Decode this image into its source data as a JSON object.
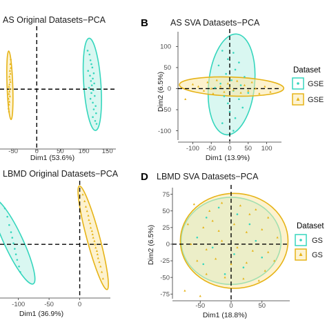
{
  "colors": {
    "teal": "#35d6bd",
    "gold": "#e6b316",
    "teal_fill": "#b9f0e5",
    "gold_fill": "#fbe7a6",
    "axis_line": "#333333",
    "refline": "#000000"
  },
  "legend": {
    "title": "Dataset",
    "title_d": "Dataset",
    "items_b": [
      "GSE",
      "GSE"
    ],
    "items_d": [
      "GS",
      "GS"
    ],
    "icons": [
      "circle-icon",
      "triangle-icon"
    ]
  },
  "chart_data": [
    {
      "id": "A",
      "type": "scatter",
      "title": "AS Original Datasets−PCA",
      "panel_label": "",
      "xlabel": "Dim1 (53.6%)",
      "ylabel": "",
      "xlim": [
        -78,
        168
      ],
      "ylim": [
        -120,
        125
      ],
      "xticks": [
        "-50",
        "0",
        "50",
        "100",
        "150"
      ],
      "yticks": [],
      "refline_x": 0,
      "refline_y": 0,
      "series": [
        {
          "color": "teal",
          "marker": "circle",
          "ellipse": {
            "cx": 118,
            "cy": 10,
            "rx": 97,
            "ry": 18,
            "angle": 94
          },
          "points": [
            [
              108,
              80
            ],
            [
              112,
              72
            ],
            [
              114,
              60
            ],
            [
              116,
              52
            ],
            [
              118,
              45
            ],
            [
              109,
              38
            ],
            [
              121,
              33
            ],
            [
              113,
              28
            ],
            [
              119,
              22
            ],
            [
              115,
              17
            ],
            [
              122,
              12
            ],
            [
              117,
              8
            ],
            [
              111,
              3
            ],
            [
              120,
              -2
            ],
            [
              116,
              -8
            ],
            [
              123,
              -14
            ],
            [
              114,
              -20
            ],
            [
              119,
              -28
            ],
            [
              125,
              -35
            ],
            [
              121,
              -42
            ],
            [
              126,
              -50
            ],
            [
              119,
              -58
            ],
            [
              124,
              -66
            ],
            [
              127,
              -72
            ]
          ]
        },
        {
          "color": "gold",
          "marker": "triangle",
          "ellipse": {
            "cx": -57,
            "cy": 8,
            "rx": 72,
            "ry": 6,
            "angle": 92
          },
          "points": [
            [
              -55,
              62
            ],
            [
              -56,
              52
            ],
            [
              -55,
              44
            ],
            [
              -57,
              38
            ],
            [
              -56,
              32
            ],
            [
              -58,
              26
            ],
            [
              -57,
              20
            ],
            [
              -56,
              15
            ],
            [
              -58,
              10
            ],
            [
              -59,
              5
            ],
            [
              -57,
              0
            ],
            [
              -58,
              -5
            ],
            [
              -59,
              -10
            ],
            [
              -57,
              -15
            ],
            [
              -60,
              -20
            ],
            [
              -58,
              -26
            ],
            [
              -59,
              -32
            ],
            [
              -60,
              -40
            ],
            [
              -59,
              -46
            ]
          ]
        }
      ]
    },
    {
      "id": "B",
      "type": "scatter",
      "title": "AS SVA Datasets−PCA",
      "panel_label": "B",
      "xlabel": "Dim1 (13.9%)",
      "ylabel": "Dim2 (6.5%)",
      "xlim": [
        -140,
        140
      ],
      "ylim": [
        -122,
        135
      ],
      "xticks": [
        "-100",
        "-50",
        "0",
        "50",
        "100"
      ],
      "yticks": [
        "100",
        "50",
        "0",
        "-50",
        "-100"
      ],
      "xtick_values": [
        -100,
        -50,
        0,
        50,
        100
      ],
      "ytick_values": [
        100,
        50,
        0,
        -50,
        -100
      ],
      "refline_x": 0,
      "refline_y": 0,
      "series": [
        {
          "color": "teal",
          "marker": "circle",
          "ellipse": {
            "cx": 5,
            "cy": 10,
            "rx": 128,
            "ry": 58,
            "angle": 84
          },
          "points": [
            [
              -20,
              90
            ],
            [
              10,
              85
            ],
            [
              -5,
              70
            ],
            [
              25,
              62
            ],
            [
              -30,
              55
            ],
            [
              15,
              45
            ],
            [
              -10,
              35
            ],
            [
              40,
              28
            ],
            [
              5,
              20
            ],
            [
              -25,
              12
            ],
            [
              30,
              8
            ],
            [
              -40,
              2
            ],
            [
              10,
              -5
            ],
            [
              50,
              -10
            ],
            [
              -15,
              -18
            ],
            [
              25,
              -25
            ],
            [
              -5,
              -35
            ],
            [
              35,
              -45
            ],
            [
              0,
              -55
            ],
            [
              15,
              -70
            ],
            [
              -20,
              -82
            ],
            [
              10,
              -100
            ]
          ]
        },
        {
          "color": "gold",
          "marker": "triangle",
          "ellipse": {
            "cx": 5,
            "cy": 5,
            "rx": 132,
            "ry": 24,
            "angle": -2
          },
          "points": [
            [
              -100,
              10
            ],
            [
              -85,
              5
            ],
            [
              -70,
              -5
            ],
            [
              -60,
              15
            ],
            [
              -50,
              0
            ],
            [
              -45,
              -12
            ],
            [
              -35,
              20
            ],
            [
              -25,
              5
            ],
            [
              -15,
              -8
            ],
            [
              -5,
              12
            ],
            [
              0,
              2
            ],
            [
              10,
              -3
            ],
            [
              20,
              18
            ],
            [
              30,
              -10
            ],
            [
              40,
              8
            ],
            [
              50,
              -5
            ],
            [
              60,
              15
            ],
            [
              70,
              0
            ],
            [
              80,
              -12
            ],
            [
              95,
              5
            ],
            [
              -120,
              -25
            ],
            [
              110,
              -8
            ]
          ]
        }
      ]
    },
    {
      "id": "C",
      "type": "scatter",
      "title": "LBMD Original Datasets−PCA",
      "panel_label": "",
      "xlabel": "Dim1 (36.9%)",
      "ylabel": "",
      "xlim": [
        -130,
        50
      ],
      "ylim": [
        -92,
        110
      ],
      "xticks": [
        "-100",
        "-50",
        "0"
      ],
      "xtick_values": [
        -100,
        -50,
        0
      ],
      "yticks": [],
      "refline_x": 0,
      "refline_y": 0,
      "series": [
        {
          "color": "teal",
          "marker": "circle",
          "ellipse": {
            "cx": -108,
            "cy": 5,
            "rx": 80,
            "ry": 16,
            "angle": 115
          },
          "points": [
            [
              -122,
              65
            ],
            [
              -118,
              50
            ],
            [
              -115,
              35
            ],
            [
              -112,
              22
            ],
            [
              -110,
              12
            ],
            [
              -108,
              2
            ],
            [
              -106,
              -8
            ],
            [
              -104,
              -18
            ],
            [
              -102,
              -28
            ],
            [
              -99,
              -40
            ],
            [
              -97,
              -50
            ]
          ]
        },
        {
          "color": "gold",
          "marker": "triangle",
          "ellipse": {
            "cx": 22,
            "cy": 12,
            "rx": 92,
            "ry": 11,
            "angle": 105
          },
          "points": [
            [
              5,
              90
            ],
            [
              8,
              78
            ],
            [
              10,
              68
            ],
            [
              12,
              60
            ],
            [
              14,
              52
            ],
            [
              15,
              44
            ],
            [
              17,
              38
            ],
            [
              18,
              30
            ],
            [
              20,
              24
            ],
            [
              21,
              18
            ],
            [
              22,
              12
            ],
            [
              24,
              6
            ],
            [
              25,
              0
            ],
            [
              26,
              -6
            ],
            [
              28,
              -12
            ],
            [
              29,
              -18
            ],
            [
              30,
              -25
            ],
            [
              32,
              -32
            ],
            [
              34,
              -40
            ],
            [
              36,
              -50
            ],
            [
              38,
              -62
            ]
          ]
        }
      ]
    },
    {
      "id": "D",
      "type": "scatter",
      "title": "LBMD SVA Datasets−PCA",
      "panel_label": "D",
      "xlabel": "Dim1 (18.8%)",
      "ylabel": "Dim2 (6.5%)",
      "xlim": [
        -95,
        95
      ],
      "ylim": [
        -82,
        85
      ],
      "xticks": [
        "-50",
        "0",
        "50"
      ],
      "xtick_values": [
        -50,
        0,
        50
      ],
      "yticks": [
        "75",
        "50",
        "25",
        "0",
        "-25",
        "-50",
        "-75"
      ],
      "ytick_values": [
        75,
        50,
        25,
        0,
        -25,
        -50,
        -75
      ],
      "refline_x": 0,
      "refline_y": 0,
      "series": [
        {
          "color": "teal",
          "marker": "circle",
          "ellipse": {
            "cx": 0,
            "cy": 5,
            "rx": 78,
            "ry": 68,
            "angle": 0
          },
          "points": [
            [
              -40,
              40
            ],
            [
              -20,
              55
            ],
            [
              10,
              45
            ],
            [
              30,
              30
            ],
            [
              -55,
              10
            ],
            [
              -30,
              -5
            ],
            [
              5,
              -15
            ],
            [
              40,
              5
            ],
            [
              20,
              -35
            ],
            [
              -10,
              -45
            ],
            [
              50,
              -20
            ],
            [
              -45,
              -30
            ]
          ]
        },
        {
          "color": "gold",
          "marker": "triangle",
          "ellipse": {
            "cx": 5,
            "cy": 5,
            "rx": 84,
            "ry": 74,
            "angle": 0
          },
          "points": [
            [
              -60,
              60
            ],
            [
              -35,
              50
            ],
            [
              -15,
              62
            ],
            [
              15,
              58
            ],
            [
              40,
              52
            ],
            [
              60,
              40
            ],
            [
              -70,
              30
            ],
            [
              -45,
              25
            ],
            [
              -20,
              20
            ],
            [
              5,
              30
            ],
            [
              25,
              18
            ],
            [
              50,
              22
            ],
            [
              75,
              10
            ],
            [
              -65,
              0
            ],
            [
              -40,
              -8
            ],
            [
              -15,
              5
            ],
            [
              10,
              -5
            ],
            [
              35,
              -10
            ],
            [
              60,
              -12
            ],
            [
              -55,
              -25
            ],
            [
              -25,
              -22
            ],
            [
              0,
              -30
            ],
            [
              25,
              -28
            ],
            [
              55,
              -40
            ],
            [
              -40,
              -45
            ],
            [
              -10,
              -50
            ],
            [
              20,
              -52
            ],
            [
              45,
              -55
            ],
            [
              -75,
              -70
            ],
            [
              -50,
              -78
            ],
            [
              70,
              -25
            ],
            [
              -30,
              35
            ],
            [
              30,
              45
            ]
          ]
        }
      ]
    }
  ]
}
